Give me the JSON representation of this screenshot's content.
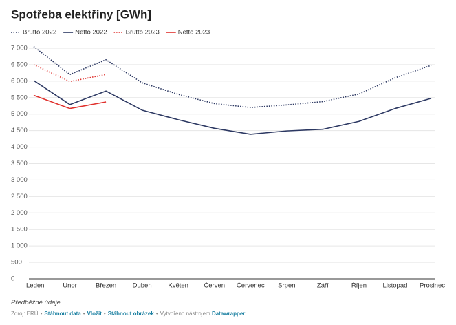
{
  "chart_data": {
    "type": "line",
    "title": "Spotřeba elektřiny [GWh]",
    "categories": [
      "Leden",
      "Únor",
      "Březen",
      "Duben",
      "Květen",
      "Červen",
      "Červenec",
      "Srpen",
      "Září",
      "Říjen",
      "Listopad",
      "Prosinec"
    ],
    "series": [
      {
        "name": "Brutto 2022",
        "color": "#2c3862",
        "style": "dotted",
        "values": [
          7050,
          6200,
          6650,
          5950,
          5600,
          5320,
          5200,
          5280,
          5380,
          5610,
          6100,
          6480
        ]
      },
      {
        "name": "Netto 2022",
        "color": "#2c3862",
        "style": "solid",
        "values": [
          6020,
          5290,
          5700,
          5120,
          4830,
          4570,
          4390,
          4490,
          4540,
          4780,
          5170,
          5480
        ]
      },
      {
        "name": "Brutto 2023",
        "color": "#e0312d",
        "style": "dotted",
        "values": [
          6500,
          5990,
          6200,
          null,
          null,
          null,
          null,
          null,
          null,
          null,
          null,
          null
        ]
      },
      {
        "name": "Netto 2023",
        "color": "#e0312d",
        "style": "solid",
        "values": [
          5570,
          5170,
          5370,
          null,
          null,
          null,
          null,
          null,
          null,
          null,
          null,
          null
        ]
      }
    ],
    "ylim": [
      0,
      7000
    ],
    "yticks": [
      0,
      500,
      {
        "value": 1000,
        "label": "1 000"
      },
      {
        "value": 1500,
        "label": "1 500"
      },
      {
        "value": 2000,
        "label": "2 000"
      },
      {
        "value": 2500,
        "label": "2 500"
      },
      {
        "value": 3000,
        "label": "3 000"
      },
      {
        "value": 3500,
        "label": "3 500"
      },
      {
        "value": 4000,
        "label": "4 000"
      },
      {
        "value": 4500,
        "label": "4 500"
      },
      {
        "value": 5000,
        "label": "5 000"
      },
      {
        "value": 5500,
        "label": "5 500"
      },
      {
        "value": 6000,
        "label": "6 000"
      },
      {
        "value": 6500,
        "label": "6 500"
      },
      {
        "value": 7000,
        "label": "7 000"
      }
    ],
    "grid": true,
    "note": "Předběžné údaje",
    "source": "Zdroj: ERÚ",
    "links": [
      "Stáhnout data",
      "Vložit",
      "Stáhnout obrázek"
    ],
    "credit": "Vytvořeno nástrojem",
    "credit_link": "Datawrapper",
    "separator": "•"
  }
}
